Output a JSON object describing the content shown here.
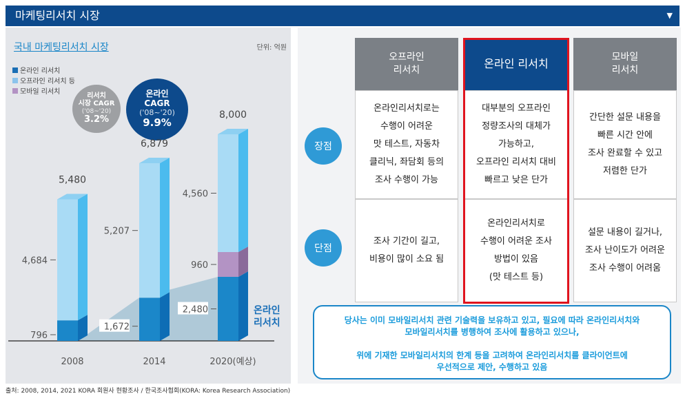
{
  "header": {
    "title": "마케팅리서치 시장",
    "chevron": "▼"
  },
  "left": {
    "title": "국내 마케팅리서치 시장",
    "unit": "단위: 억원",
    "legend": [
      "온라인 리서치",
      "오프라인 리서치 등",
      "모바일 리서치"
    ],
    "cagr_market": {
      "l1": "리서치",
      "l2": "시장 CAGR",
      "period": "('08~'20)",
      "value": "3.2%"
    },
    "cagr_online": {
      "l1": "온라인",
      "l2": "CAGR",
      "period": "('08~'20)",
      "value": "9.9%"
    },
    "online_label": [
      "온라인",
      "리서치"
    ],
    "source": "출처: 2008, 2014, 2021 KORA 회원사 현황조사 / 한국조사협회(KORA: Korea Research Association)"
  },
  "colors": {
    "online": "#1b87c9",
    "offline": "#a9dbf5",
    "mobile": "#b393c4",
    "navy": "#0d4a8c"
  },
  "chart_data": {
    "type": "bar",
    "stacked": true,
    "categories": [
      "2008",
      "2014",
      "2020(예상)"
    ],
    "series": [
      {
        "name": "온라인 리서치",
        "values": [
          796,
          1672,
          2480
        ]
      },
      {
        "name": "모바일 리서치",
        "values": [
          0,
          0,
          960
        ]
      },
      {
        "name": "오프라인 리서치 등",
        "values": [
          4684,
          5207,
          4560
        ]
      }
    ],
    "totals": [
      "5,480",
      "6,879",
      "8,000"
    ],
    "labels": {
      "online": [
        "796",
        "1,672",
        "2,480"
      ],
      "offline": [
        "4,684",
        "5,207",
        "4,560"
      ],
      "mobile": [
        "",
        "",
        "960"
      ]
    },
    "ylim": [
      0,
      8000
    ]
  },
  "table": {
    "columns": [
      {
        "title": "오프라인\n리서치"
      },
      {
        "title": "온라인 리서치"
      },
      {
        "title": "모바일\n리서치"
      }
    ],
    "rows": [
      {
        "label": "장점",
        "cells": [
          "온라인리서치로는\n수행이 어려운\n맛 테스트, 자동차\n클리닉, 좌담회 등의\n조사 수행이 가능",
          "대부분의 오프라인\n정량조사의 대체가\n가능하고,\n오프라인 리서치 대비\n빠르고 낮은 단가",
          "간단한 설문 내용을\n빠른 시간 안에\n조사 완료할 수 있고\n저렴한 단가"
        ]
      },
      {
        "label": "단점",
        "cells": [
          "조사 기간이 길고,\n비용이 많이 소요 됨",
          "온라인리서치로\n수행이 어려운 조사\n방법이 있음\n(맛 테스트 등)",
          "설문 내용이 길거나,\n조사 난이도가 어려운\n조사 수행이 어려움"
        ]
      }
    ]
  },
  "note": [
    "당사는 이미 모바일리서치 관련 기술력을 보유하고 있고, 필요에 따라 온라인리서치와",
    "모바일리서치를 병행하여 조사에 활용하고 있으나,",
    "",
    "위에 기재한 모바일리서치의 한계 등을 고려하여 온라인리서치를 클라이언트에",
    "우선적으로 제안, 수행하고 있음"
  ]
}
